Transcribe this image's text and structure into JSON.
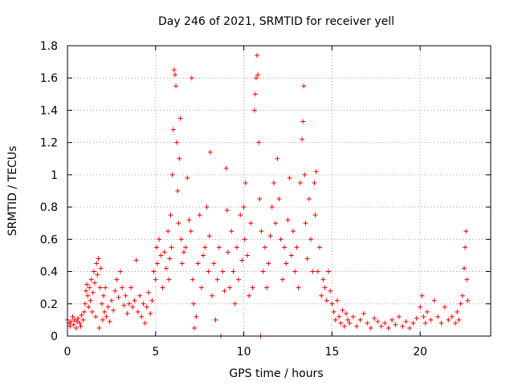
{
  "chart_data": {
    "type": "scatter",
    "title": "Day 246 of 2021, SRMTID for receiver yell",
    "xlabel": "GPS time / hours",
    "ylabel": "SRMTID / TECUs",
    "xlim": [
      0,
      24
    ],
    "ylim": [
      0,
      1.8
    ],
    "xticks": [
      0,
      5,
      10,
      15,
      20
    ],
    "xtick_labels": [
      "0",
      "5",
      "10",
      "15",
      "20"
    ],
    "yticks": [
      0,
      0.2,
      0.4,
      0.6,
      0.8,
      1.0,
      1.2,
      1.4,
      1.6,
      1.8
    ],
    "ytick_labels": [
      "0",
      "0.2",
      "0.4",
      "0.6",
      "0.8",
      "1",
      "1.2",
      "1.4",
      "1.6",
      "1.8"
    ],
    "grid": true,
    "marker": "+",
    "color": "#ff0000",
    "series": [
      {
        "name": "SRMTID",
        "points": [
          [
            0.0,
            0.1
          ],
          [
            0.1,
            0.08
          ],
          [
            0.15,
            0.06
          ],
          [
            0.2,
            0.09
          ],
          [
            0.3,
            0.12
          ],
          [
            0.35,
            0.07
          ],
          [
            0.4,
            0.1
          ],
          [
            0.5,
            0.05
          ],
          [
            0.55,
            0.09
          ],
          [
            0.6,
            0.11
          ],
          [
            0.7,
            0.08
          ],
          [
            0.75,
            0.06
          ],
          [
            0.8,
            0.13
          ],
          [
            0.9,
            0.1
          ],
          [
            0.95,
            0.15
          ],
          [
            1.0,
            0.2
          ],
          [
            1.05,
            0.28
          ],
          [
            1.1,
            0.32
          ],
          [
            1.15,
            0.25
          ],
          [
            1.2,
            0.18
          ],
          [
            1.25,
            0.3
          ],
          [
            1.3,
            0.22
          ],
          [
            1.35,
            0.35
          ],
          [
            1.4,
            0.15
          ],
          [
            1.45,
            0.27
          ],
          [
            1.5,
            0.4
          ],
          [
            1.55,
            0.33
          ],
          [
            1.6,
            0.12
          ],
          [
            1.65,
            0.45
          ],
          [
            1.7,
            0.38
          ],
          [
            1.75,
            0.48
          ],
          [
            1.8,
            0.05
          ],
          [
            1.85,
            0.3
          ],
          [
            1.9,
            0.42
          ],
          [
            1.95,
            0.2
          ],
          [
            2.0,
            0.1
          ],
          [
            2.05,
            0.25
          ],
          [
            2.1,
            0.15
          ],
          [
            2.15,
            0.3
          ],
          [
            2.2,
            0.12
          ],
          [
            2.3,
            0.18
          ],
          [
            2.4,
            0.09
          ],
          [
            2.5,
            0.22
          ],
          [
            2.6,
            0.16
          ],
          [
            2.7,
            0.28
          ],
          [
            2.8,
            0.35
          ],
          [
            2.9,
            0.24
          ],
          [
            3.0,
            0.4
          ],
          [
            3.1,
            0.3
          ],
          [
            3.2,
            0.19
          ],
          [
            3.3,
            0.25
          ],
          [
            3.4,
            0.14
          ],
          [
            3.5,
            0.2
          ],
          [
            3.6,
            0.3
          ],
          [
            3.7,
            0.18
          ],
          [
            3.8,
            0.22
          ],
          [
            3.9,
            0.47
          ],
          [
            4.0,
            0.15
          ],
          [
            4.1,
            0.25
          ],
          [
            4.2,
            0.12
          ],
          [
            4.3,
            0.2
          ],
          [
            4.4,
            0.08
          ],
          [
            4.5,
            0.18
          ],
          [
            4.6,
            0.27
          ],
          [
            4.7,
            0.14
          ],
          [
            4.8,
            0.22
          ],
          [
            4.9,
            0.4
          ],
          [
            5.0,
            0.35
          ],
          [
            5.05,
            0.55
          ],
          [
            5.1,
            0.45
          ],
          [
            5.2,
            0.6
          ],
          [
            5.3,
            0.5
          ],
          [
            5.4,
            0.3
          ],
          [
            5.5,
            0.52
          ],
          [
            5.6,
            0.42
          ],
          [
            5.7,
            0.65
          ],
          [
            5.75,
            0.35
          ],
          [
            5.8,
            0.48
          ],
          [
            5.85,
            0.75
          ],
          [
            5.9,
            0.55
          ],
          [
            5.95,
            1.0
          ],
          [
            6.0,
            1.28
          ],
          [
            6.05,
            1.65
          ],
          [
            6.1,
            1.62
          ],
          [
            6.15,
            1.55
          ],
          [
            6.2,
            1.2
          ],
          [
            6.25,
            0.9
          ],
          [
            6.3,
            0.7
          ],
          [
            6.35,
            1.1
          ],
          [
            6.4,
            1.35
          ],
          [
            6.45,
            0.6
          ],
          [
            6.5,
            0.45
          ],
          [
            6.6,
            0.52
          ],
          [
            6.7,
            0.55
          ],
          [
            6.8,
            0.98
          ],
          [
            6.9,
            0.72
          ],
          [
            7.0,
            0.65
          ],
          [
            7.05,
            1.6
          ],
          [
            7.1,
            0.35
          ],
          [
            7.15,
            0.2
          ],
          [
            7.2,
            0.05
          ],
          [
            7.3,
            0.12
          ],
          [
            7.4,
            0.45
          ],
          [
            7.5,
            0.75
          ],
          [
            7.6,
            0.3
          ],
          [
            7.7,
            0.5
          ],
          [
            7.8,
            0.55
          ],
          [
            7.9,
            0.8
          ],
          [
            8.0,
            0.4
          ],
          [
            8.05,
            0.62
          ],
          [
            8.1,
            1.14
          ],
          [
            8.2,
            0.25
          ],
          [
            8.3,
            0.45
          ],
          [
            8.4,
            0.1
          ],
          [
            8.5,
            0.35
          ],
          [
            8.6,
            0.55
          ],
          [
            8.7,
            0.0
          ],
          [
            8.8,
            0.4
          ],
          [
            8.9,
            0.28
          ],
          [
            9.0,
            1.04
          ],
          [
            9.05,
            0.78
          ],
          [
            9.1,
            0.52
          ],
          [
            9.2,
            0.3
          ],
          [
            9.3,
            0.65
          ],
          [
            9.4,
            0.4
          ],
          [
            9.5,
            0.2
          ],
          [
            9.6,
            0.55
          ],
          [
            9.7,
            0.35
          ],
          [
            9.8,
            0.75
          ],
          [
            9.9,
            0.47
          ],
          [
            10.0,
            0.8
          ],
          [
            10.05,
            0.6
          ],
          [
            10.1,
            0.95
          ],
          [
            10.2,
            0.5
          ],
          [
            10.3,
            0.25
          ],
          [
            10.4,
            0.7
          ],
          [
            10.5,
            0.3
          ],
          [
            10.6,
            1.4
          ],
          [
            10.65,
            1.5
          ],
          [
            10.7,
            1.6
          ],
          [
            10.75,
            1.74
          ],
          [
            10.8,
            1.62
          ],
          [
            10.85,
            1.2
          ],
          [
            10.9,
            0.85
          ],
          [
            10.95,
            0.0
          ],
          [
            11.0,
            0.65
          ],
          [
            11.1,
            0.4
          ],
          [
            11.2,
            0.55
          ],
          [
            11.3,
            0.3
          ],
          [
            11.4,
            0.45
          ],
          [
            11.5,
            0.62
          ],
          [
            11.6,
            0.8
          ],
          [
            11.7,
            0.95
          ],
          [
            11.8,
            0.7
          ],
          [
            11.9,
            1.1
          ],
          [
            12.0,
            0.85
          ],
          [
            12.1,
            0.6
          ],
          [
            12.2,
            0.35
          ],
          [
            12.3,
            0.55
          ],
          [
            12.4,
            0.45
          ],
          [
            12.5,
            0.72
          ],
          [
            12.6,
            0.98
          ],
          [
            12.7,
            0.5
          ],
          [
            12.8,
            0.65
          ],
          [
            12.9,
            0.4
          ],
          [
            13.0,
            0.55
          ],
          [
            13.1,
            0.3
          ],
          [
            13.2,
            0.95
          ],
          [
            13.3,
            1.22
          ],
          [
            13.35,
            1.33
          ],
          [
            13.4,
            1.55
          ],
          [
            13.45,
            1.0
          ],
          [
            13.5,
            0.7
          ],
          [
            13.6,
            0.48
          ],
          [
            13.7,
            0.85
          ],
          [
            13.8,
            0.6
          ],
          [
            13.9,
            0.4
          ],
          [
            14.0,
            0.95
          ],
          [
            14.05,
            0.75
          ],
          [
            14.1,
            1.02
          ],
          [
            14.2,
            0.4
          ],
          [
            14.3,
            0.55
          ],
          [
            14.4,
            0.25
          ],
          [
            14.5,
            0.35
          ],
          [
            14.6,
            0.3
          ],
          [
            14.7,
            0.22
          ],
          [
            14.8,
            0.4
          ],
          [
            14.9,
            0.28
          ],
          [
            15.0,
            0.2
          ],
          [
            15.1,
            0.15
          ],
          [
            15.2,
            0.1
          ],
          [
            15.3,
            0.22
          ],
          [
            15.4,
            0.12
          ],
          [
            15.5,
            0.08
          ],
          [
            15.6,
            0.16
          ],
          [
            15.7,
            0.06
          ],
          [
            15.8,
            0.14
          ],
          [
            15.9,
            0.1
          ],
          [
            16.0,
            0.08
          ],
          [
            16.2,
            0.12
          ],
          [
            16.4,
            0.06
          ],
          [
            16.6,
            0.1
          ],
          [
            16.8,
            0.14
          ],
          [
            17.0,
            0.08
          ],
          [
            17.2,
            0.05
          ],
          [
            17.4,
            0.11
          ],
          [
            17.6,
            0.09
          ],
          [
            17.8,
            0.06
          ],
          [
            18.0,
            0.08
          ],
          [
            18.2,
            0.05
          ],
          [
            18.4,
            0.1
          ],
          [
            18.6,
            0.07
          ],
          [
            18.8,
            0.12
          ],
          [
            19.0,
            0.06
          ],
          [
            19.2,
            0.09
          ],
          [
            19.4,
            0.05
          ],
          [
            19.6,
            0.08
          ],
          [
            19.8,
            0.11
          ],
          [
            20.0,
            0.18
          ],
          [
            20.1,
            0.25
          ],
          [
            20.2,
            0.12
          ],
          [
            20.3,
            0.08
          ],
          [
            20.4,
            0.15
          ],
          [
            20.6,
            0.1
          ],
          [
            20.8,
            0.22
          ],
          [
            21.0,
            0.12
          ],
          [
            21.2,
            0.08
          ],
          [
            21.4,
            0.18
          ],
          [
            21.6,
            0.1
          ],
          [
            21.8,
            0.12
          ],
          [
            22.0,
            0.08
          ],
          [
            22.1,
            0.15
          ],
          [
            22.2,
            0.1
          ],
          [
            22.3,
            0.2
          ],
          [
            22.4,
            0.25
          ],
          [
            22.5,
            0.42
          ],
          [
            22.55,
            0.55
          ],
          [
            22.6,
            0.65
          ],
          [
            22.65,
            0.35
          ],
          [
            22.7,
            0.22
          ]
        ]
      }
    ]
  }
}
